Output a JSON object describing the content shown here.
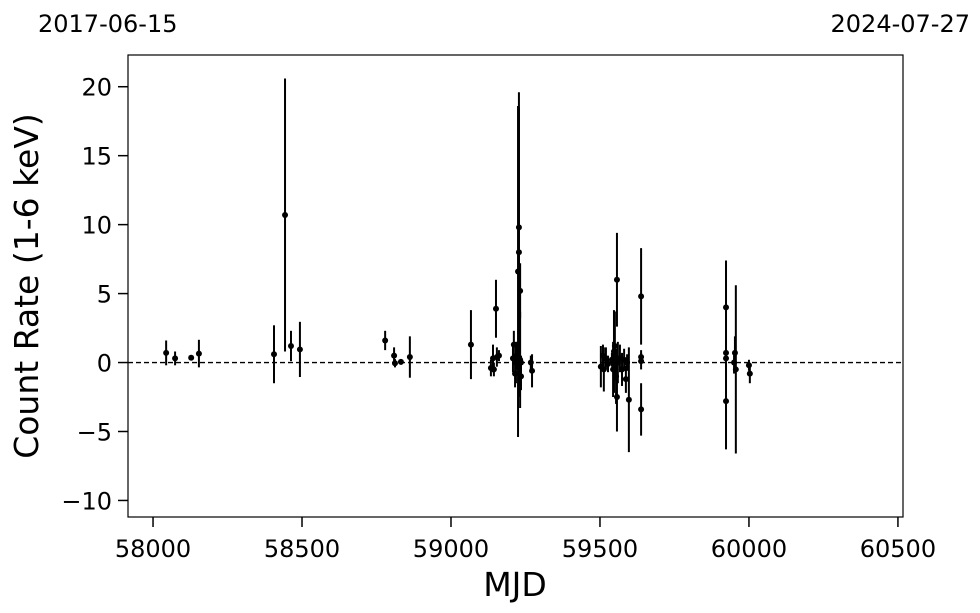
{
  "chart_data": {
    "type": "errorbar",
    "x_label": "MJD",
    "y_label": "Count Rate (1-6 keV)",
    "annotations": [
      "2017-06-15",
      "2024-07-27"
    ],
    "hline": 0,
    "xlim": [
      57916,
      60517
    ],
    "ylim": [
      -11.2,
      22.3
    ],
    "xticks": [
      58000,
      58500,
      59000,
      59500,
      60000,
      60500
    ],
    "yticks": [
      {
        "value": -10,
        "label": "−10"
      },
      {
        "value": -5,
        "label": "−5"
      },
      0,
      5,
      10,
      15,
      20
    ],
    "series": [
      {
        "color": "#000000",
        "x": [
          58044,
          58074,
          58128,
          58154,
          58406,
          58443,
          58463,
          58493,
          58779,
          58809,
          58812,
          58832,
          58862,
          59067,
          59134,
          59141,
          59144,
          59151,
          59154,
          59161,
          59208,
          59211,
          59215,
          59218,
          59221,
          59225,
          59228,
          59228,
          59232,
          59232,
          59235,
          59235,
          59268,
          59272,
          59503,
          59510,
          59513,
          59520,
          59527,
          59540,
          59544,
          59547,
          59550,
          59554,
          59557,
          59557,
          59560,
          59567,
          59574,
          59581,
          59587,
          59591,
          59597,
          59638,
          59638,
          59638,
          59638,
          59923,
          59923,
          59923,
          59923,
          59950,
          59953,
          59956,
          60000,
          60003
        ],
        "values": [
          0.7,
          0.3,
          0.35,
          0.65,
          0.6,
          10.7,
          1.2,
          0.95,
          1.6,
          0.5,
          -0.05,
          0.05,
          0.4,
          1.3,
          -0.4,
          0.3,
          -0.5,
          3.9,
          0.4,
          0.5,
          0.3,
          1.3,
          -0.8,
          0.0,
          0.5,
          6.6,
          9.8,
          8.0,
          5.2,
          0.2,
          -1.0,
          0.0,
          0.0,
          -0.6,
          -0.3,
          0.5,
          -0.5,
          0.3,
          -0.1,
          0.2,
          -0.5,
          0.8,
          1.2,
          -1.0,
          6.0,
          -2.5,
          0.0,
          0.3,
          -0.5,
          0.2,
          -1.2,
          0.0,
          -2.7,
          4.8,
          0.4,
          0.1,
          -3.4,
          4.0,
          -2.8,
          0.7,
          0.3,
          0.0,
          0.7,
          -0.5,
          -0.2,
          -0.8
        ],
        "errors": [
          0.9,
          0.5,
          0.15,
          1.0,
          2.1,
          9.9,
          1.1,
          2.0,
          0.7,
          0.6,
          0.3,
          0.2,
          1.5,
          2.5,
          0.6,
          1.0,
          0.5,
          2.1,
          0.7,
          0.4,
          1.0,
          1.0,
          1.0,
          1.5,
          1.0,
          12.0,
          9.8,
          10.5,
          2.0,
          3.5,
          1.0,
          0.5,
          0.5,
          1.2,
          1.5,
          0.8,
          1.6,
          0.8,
          0.6,
          0.5,
          2.0,
          3.0,
          2.5,
          2.0,
          3.4,
          2.5,
          1.5,
          1.0,
          1.2,
          0.8,
          1.0,
          0.6,
          3.8,
          3.5,
          0.5,
          0.6,
          1.9,
          3.4,
          3.5,
          1.0,
          0.6,
          0.8,
          1.2,
          6.1,
          0.4,
          0.7
        ]
      }
    ]
  }
}
